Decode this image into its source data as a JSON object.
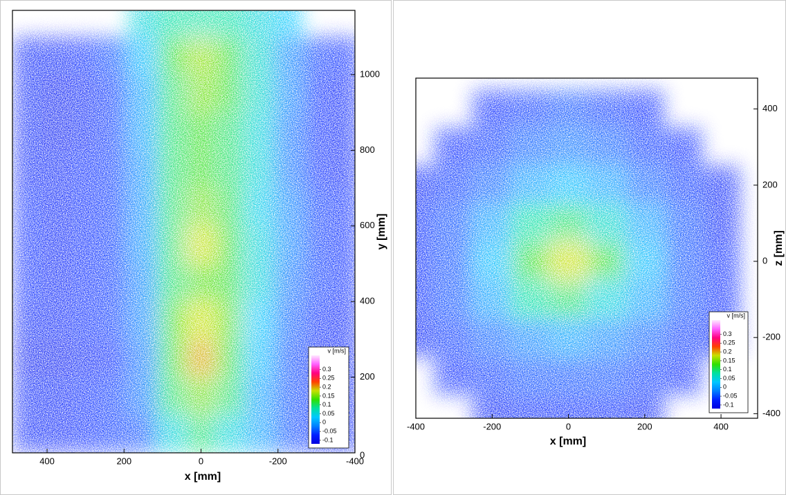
{
  "chart_data": [
    {
      "type": "heatmap",
      "xlabel": "x [mm]",
      "ylabel": "y [mm]",
      "y_axis_position": "right",
      "legend": "lower right",
      "xlim": [
        490,
        -400
      ],
      "xticks": [
        400,
        200,
        0,
        -200,
        -400
      ],
      "ylim": [
        0,
        1170
      ],
      "yticks": [
        0,
        200,
        400,
        600,
        800,
        1000
      ],
      "x": [
        450,
        375,
        300,
        225,
        150,
        75,
        0,
        -75,
        -150,
        -225,
        -300,
        -375
      ],
      "y": [
        50,
        150,
        250,
        350,
        450,
        550,
        650,
        750,
        850,
        950,
        1050,
        1150
      ],
      "values": [
        [
          -0.08,
          -0.08,
          -0.07,
          -0.06,
          -0.05,
          0.05,
          0.1,
          0.05,
          0,
          -0.05,
          -0.07,
          -0.08
        ],
        [
          -0.08,
          -0.08,
          -0.07,
          -0.06,
          -0.03,
          0.1,
          0.15,
          0.1,
          0,
          -0.05,
          -0.07,
          -0.08
        ],
        [
          -0.09,
          -0.09,
          -0.08,
          -0.07,
          -0.03,
          0.12,
          0.2,
          0.12,
          0.02,
          -0.05,
          -0.08,
          -0.08
        ],
        [
          -0.08,
          -0.08,
          -0.07,
          -0.06,
          -0.02,
          0.13,
          0.18,
          0.14,
          0.03,
          -0.04,
          -0.07,
          -0.08
        ],
        [
          -0.07,
          -0.08,
          -0.07,
          -0.06,
          -0.02,
          0.1,
          0.14,
          0.12,
          0.05,
          -0.03,
          -0.06,
          -0.07
        ],
        [
          -0.07,
          -0.08,
          -0.07,
          -0.06,
          -0.01,
          0.1,
          0.18,
          0.12,
          0.05,
          -0.02,
          -0.06,
          -0.07
        ],
        [
          -0.07,
          -0.08,
          -0.07,
          -0.06,
          -0.01,
          0.1,
          0.15,
          0.11,
          0.04,
          -0.02,
          -0.06,
          -0.07
        ],
        [
          -0.08,
          -0.08,
          -0.07,
          -0.06,
          -0.01,
          0.1,
          0.13,
          0.1,
          0.05,
          -0.03,
          -0.07,
          -0.08
        ],
        [
          -0.08,
          -0.09,
          -0.08,
          -0.06,
          0,
          0.1,
          0.13,
          0.1,
          0.05,
          -0.03,
          -0.07,
          -0.08
        ],
        [
          -0.08,
          -0.09,
          -0.08,
          -0.06,
          0,
          0.1,
          0.15,
          0.12,
          0.06,
          -0.02,
          -0.07,
          -0.08
        ],
        [
          -0.08,
          -0.08,
          -0.07,
          -0.05,
          0.02,
          0.12,
          0.16,
          0.12,
          0.06,
          -0.02,
          -0.06,
          -0.07
        ],
        [
          null,
          null,
          null,
          null,
          0.05,
          0.08,
          0.08,
          0.08,
          0.05,
          0.03,
          null,
          null
        ]
      ],
      "colorbar_label": "v [m/s]",
      "clim": [
        -0.12,
        0.38
      ],
      "cticks": [
        -0.1,
        -0.05,
        0,
        0.05,
        0.1,
        0.15,
        0.2,
        0.25,
        0.3
      ],
      "colormap": [
        "#0000e0",
        "#0020ff",
        "#0080ff",
        "#00c8ff",
        "#00e0a0",
        "#30e000",
        "#c8e000",
        "#ff4000",
        "#ff0080",
        "#ff60ff",
        "#ffe8ff"
      ]
    },
    {
      "type": "heatmap",
      "xlabel": "x [mm]",
      "ylabel": "z [mm]",
      "y_axis_position": "right",
      "legend": "lower right",
      "xlim": [
        -400,
        496
      ],
      "xticks": [
        -400,
        -200,
        0,
        200,
        400
      ],
      "ylim": [
        -412,
        481
      ],
      "yticks": [
        -400,
        -200,
        0,
        200,
        400
      ],
      "x": [
        -400,
        -300,
        -200,
        -100,
        0,
        100,
        200,
        300,
        400
      ],
      "y": [
        400,
        300,
        200,
        100,
        0,
        -100,
        -200,
        -300,
        -400
      ],
      "values": [
        [
          null,
          null,
          -0.07,
          -0.06,
          -0.05,
          -0.06,
          -0.07,
          null,
          null
        ],
        [
          null,
          -0.07,
          -0.06,
          -0.04,
          -0.03,
          -0.04,
          -0.06,
          -0.07,
          null
        ],
        [
          -0.08,
          -0.06,
          -0.04,
          0,
          0.02,
          0,
          -0.04,
          -0.06,
          -0.08
        ],
        [
          -0.07,
          -0.05,
          0,
          0.08,
          0.1,
          0.06,
          0,
          -0.05,
          -0.08
        ],
        [
          -0.07,
          -0.05,
          0.02,
          0.12,
          0.18,
          0.12,
          0.02,
          -0.05,
          -0.07
        ],
        [
          -0.07,
          -0.05,
          0,
          0.08,
          0.1,
          0.05,
          0,
          -0.05,
          -0.07
        ],
        [
          -0.08,
          -0.06,
          -0.04,
          -0.02,
          0,
          -0.02,
          -0.04,
          -0.06,
          -0.08
        ],
        [
          null,
          -0.07,
          -0.06,
          -0.05,
          -0.05,
          -0.05,
          -0.06,
          -0.07,
          null
        ],
        [
          null,
          null,
          -0.08,
          -0.07,
          -0.07,
          -0.07,
          -0.08,
          null,
          null
        ]
      ],
      "colorbar_label": "v [m/s]",
      "clim": [
        -0.12,
        0.38
      ],
      "cticks": [
        -0.1,
        -0.05,
        0,
        0.05,
        0.1,
        0.15,
        0.2,
        0.25,
        0.3
      ],
      "colormap": [
        "#0000e0",
        "#0020ff",
        "#0080ff",
        "#00c8ff",
        "#00e0a0",
        "#30e000",
        "#c8e000",
        "#ff4000",
        "#ff0080",
        "#ff60ff",
        "#ffe8ff"
      ]
    }
  ]
}
